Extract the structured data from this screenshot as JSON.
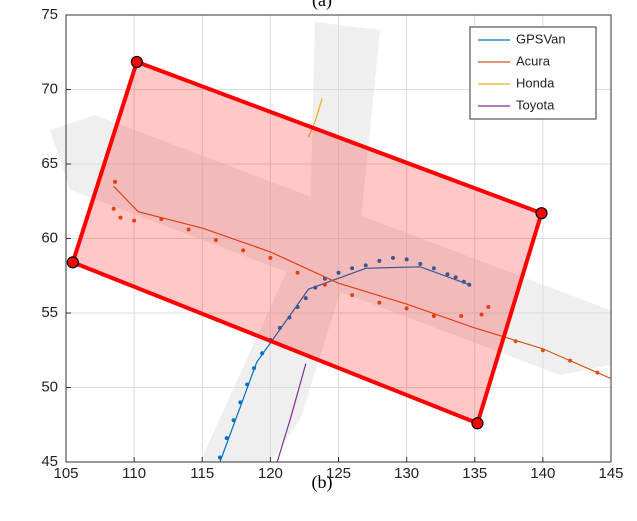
{
  "chart_data": {
    "type": "line",
    "caption_top": "(a)",
    "caption": "(b)",
    "xlim": [
      105,
      145
    ],
    "ylim": [
      45,
      75
    ],
    "xticks": [
      105,
      110,
      115,
      120,
      125,
      130,
      135,
      140,
      145
    ],
    "yticks": [
      45,
      50,
      55,
      60,
      65,
      70,
      75
    ],
    "grid": true,
    "legend": "northeast",
    "region": {
      "color": "#ff0000",
      "x": [
        110.2,
        139.9,
        135.2,
        105.5
      ],
      "y": [
        71.85,
        61.7,
        47.6,
        58.4
      ]
    },
    "series": [
      {
        "name": "GPSVan",
        "color": "#0072bd",
        "x": [
          116.3,
          119,
          122.8,
          127,
          131,
          134.6
        ],
        "y": [
          45,
          51.7,
          56.6,
          58,
          58.1,
          56.9
        ],
        "points_x": [
          116.3,
          116.8,
          117.3,
          117.8,
          118.3,
          118.8,
          119.4,
          120,
          120.7,
          121.4,
          122,
          122.6,
          123.3,
          124,
          125,
          126,
          127,
          128,
          129,
          130,
          131,
          132,
          133,
          133.6,
          134.2,
          134.6
        ],
        "points_y": [
          45.3,
          46.6,
          47.8,
          49,
          50.2,
          51.3,
          52.3,
          53.2,
          54,
          54.7,
          55.4,
          56,
          56.7,
          57.3,
          57.7,
          58,
          58.2,
          58.5,
          58.7,
          58.6,
          58.3,
          58,
          57.6,
          57.4,
          57.1,
          56.9
        ]
      },
      {
        "name": "Acura",
        "color": "#d95319",
        "x": [
          108.5,
          110.3,
          115,
          120,
          125,
          130,
          135,
          140,
          145
        ],
        "y": [
          63.5,
          61.8,
          60.7,
          59.1,
          57,
          55.6,
          54,
          52.6,
          50.6
        ],
        "points_x": [
          108.6,
          108.5,
          109,
          110,
          112,
          114,
          116,
          118,
          120,
          122,
          124,
          126,
          128,
          130,
          132,
          134,
          135.5,
          136,
          138,
          140,
          142,
          144
        ],
        "points_y": [
          63.8,
          62,
          61.4,
          61.2,
          61.3,
          60.6,
          59.9,
          59.2,
          58.7,
          57.7,
          56.9,
          56.2,
          55.7,
          55.3,
          54.8,
          54.8,
          54.9,
          55.4,
          53.1,
          52.5,
          51.8,
          51
        ]
      },
      {
        "name": "Honda",
        "color": "#edb120",
        "x": [
          122.8,
          123.3,
          123.8
        ],
        "y": [
          66.8,
          67.9,
          69.4
        ],
        "points_x": [],
        "points_y": []
      },
      {
        "name": "Toyota",
        "color": "#7e2f8e",
        "x": [
          120.5,
          121.5,
          122.6
        ],
        "y": [
          45,
          48,
          51.6
        ],
        "points_x": [],
        "points_y": []
      }
    ]
  }
}
